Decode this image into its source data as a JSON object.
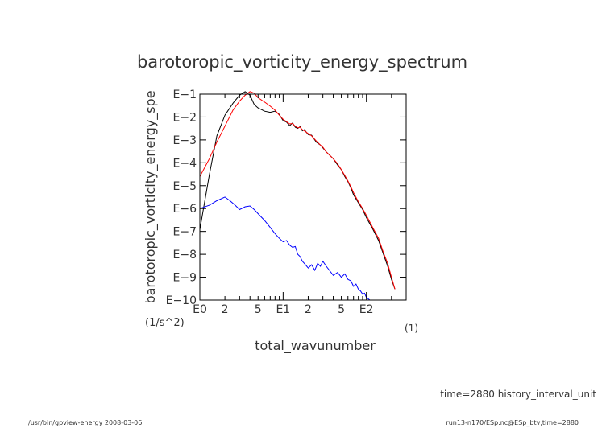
{
  "chart_data": {
    "type": "line",
    "title": "barotoropic_vorticity_energy_spectrum",
    "xlabel": "total_wavunumber",
    "xunit": "(1)",
    "ylabel": "barotoropic_vorticity_energy_spe",
    "yunit": "(1/s^2)",
    "x_scale": "log",
    "y_scale": "log",
    "xlim": [
      1,
      300
    ],
    "ylim": [
      1e-10,
      0.1
    ],
    "x_ticks": [
      {
        "value": 1,
        "label": "E0"
      },
      {
        "value": 2,
        "label": "2"
      },
      {
        "value": 5,
        "label": "5"
      },
      {
        "value": 10,
        "label": "E1"
      },
      {
        "value": 20,
        "label": "2"
      },
      {
        "value": 50,
        "label": "5"
      },
      {
        "value": 100,
        "label": "E2"
      }
    ],
    "y_ticks": [
      {
        "value": 0.1,
        "label": "E−1"
      },
      {
        "value": 0.01,
        "label": "E−2"
      },
      {
        "value": 0.001,
        "label": "E−3"
      },
      {
        "value": 0.0001,
        "label": "E−4"
      },
      {
        "value": 1e-05,
        "label": "E−5"
      },
      {
        "value": 1e-06,
        "label": "E−6"
      },
      {
        "value": 1e-07,
        "label": "E−7"
      },
      {
        "value": 1e-08,
        "label": "E−8"
      },
      {
        "value": 1e-09,
        "label": "E−9"
      },
      {
        "value": 1e-10,
        "label": "E−10"
      }
    ],
    "grid": false,
    "series": [
      {
        "color": "#000000",
        "points": [
          [
            1,
            1.2e-07
          ],
          [
            1.3,
            3e-05
          ],
          [
            1.6,
            0.0015
          ],
          [
            2,
            0.012
          ],
          [
            2.5,
            0.04
          ],
          [
            3,
            0.09
          ],
          [
            3.5,
            0.13
          ],
          [
            4,
            0.09
          ],
          [
            4.5,
            0.035
          ],
          [
            5,
            0.025
          ],
          [
            6,
            0.018
          ],
          [
            7,
            0.016
          ],
          [
            8,
            0.018
          ],
          [
            9,
            0.013
          ],
          [
            10,
            0.007
          ],
          [
            11,
            0.006
          ],
          [
            12,
            0.0042
          ],
          [
            13,
            0.0055
          ],
          [
            14,
            0.0036
          ],
          [
            15,
            0.0032
          ],
          [
            16,
            0.0038
          ],
          [
            17,
            0.0025
          ],
          [
            18,
            0.0028
          ],
          [
            20,
            0.0017
          ],
          [
            22,
            0.0016
          ],
          [
            25,
            0.0008
          ],
          [
            28,
            0.0006
          ],
          [
            30,
            0.00045
          ],
          [
            33,
            0.0003
          ],
          [
            36,
            0.00022
          ],
          [
            40,
            0.00015
          ],
          [
            45,
            8e-05
          ],
          [
            50,
            5e-05
          ],
          [
            55,
            2.5e-05
          ],
          [
            60,
            1.5e-05
          ],
          [
            65,
            8e-06
          ],
          [
            70,
            4e-06
          ],
          [
            80,
            1.8e-06
          ],
          [
            90,
            9e-07
          ],
          [
            100,
            4e-07
          ],
          [
            120,
            1.2e-07
          ],
          [
            140,
            4e-08
          ],
          [
            160,
            1e-08
          ],
          [
            180,
            3e-09
          ],
          [
            200,
            8e-10
          ],
          [
            220,
            3e-10
          ]
        ]
      },
      {
        "color": "#ff0000",
        "points": [
          [
            1,
            2.5e-05
          ],
          [
            1.3,
            0.00015
          ],
          [
            1.6,
            0.0008
          ],
          [
            2,
            0.004
          ],
          [
            2.5,
            0.02
          ],
          [
            3,
            0.05
          ],
          [
            3.5,
            0.09
          ],
          [
            4,
            0.13
          ],
          [
            4.5,
            0.11
          ],
          [
            5,
            0.07
          ],
          [
            6,
            0.045
          ],
          [
            7,
            0.03
          ],
          [
            8,
            0.02
          ],
          [
            9,
            0.012
          ],
          [
            10,
            0.008
          ],
          [
            11,
            0.0062
          ],
          [
            12,
            0.005
          ],
          [
            13,
            0.0052
          ],
          [
            14,
            0.004
          ],
          [
            15,
            0.0034
          ],
          [
            16,
            0.0036
          ],
          [
            17,
            0.0028
          ],
          [
            18,
            0.0025
          ],
          [
            20,
            0.0019
          ],
          [
            22,
            0.0015
          ],
          [
            25,
            0.0009
          ],
          [
            28,
            0.0006
          ],
          [
            30,
            0.00048
          ],
          [
            33,
            0.0003
          ],
          [
            36,
            0.00022
          ],
          [
            40,
            0.00015
          ],
          [
            45,
            9e-05
          ],
          [
            50,
            5e-05
          ],
          [
            55,
            2.8e-05
          ],
          [
            60,
            1.6e-05
          ],
          [
            65,
            9e-06
          ],
          [
            70,
            5e-06
          ],
          [
            80,
            2e-06
          ],
          [
            90,
            1e-06
          ],
          [
            100,
            5e-07
          ],
          [
            120,
            1.4e-07
          ],
          [
            140,
            5e-08
          ],
          [
            160,
            1.2e-08
          ],
          [
            180,
            4e-09
          ],
          [
            200,
            1e-09
          ],
          [
            220,
            3e-10
          ]
        ]
      },
      {
        "color": "#0000ff",
        "points": [
          [
            1,
            1e-06
          ],
          [
            1.3,
            1.4e-06
          ],
          [
            1.6,
            2.2e-06
          ],
          [
            2,
            3.2e-06
          ],
          [
            2.3,
            2.2e-06
          ],
          [
            2.6,
            1.5e-06
          ],
          [
            3,
            9e-07
          ],
          [
            3.5,
            1.2e-06
          ],
          [
            4,
            1.3e-06
          ],
          [
            4.5,
            9e-07
          ],
          [
            5,
            6e-07
          ],
          [
            6,
            3e-07
          ],
          [
            7,
            1.5e-07
          ],
          [
            8,
            8e-08
          ],
          [
            9,
            5e-08
          ],
          [
            10,
            3.5e-08
          ],
          [
            11,
            4e-08
          ],
          [
            12,
            2.5e-08
          ],
          [
            13,
            2e-08
          ],
          [
            14,
            2.2e-08
          ],
          [
            15,
            1e-08
          ],
          [
            16,
            8e-09
          ],
          [
            17,
            5e-09
          ],
          [
            18,
            4e-09
          ],
          [
            20,
            2.5e-09
          ],
          [
            22,
            3.5e-09
          ],
          [
            24,
            2e-09
          ],
          [
            26,
            4e-09
          ],
          [
            28,
            3e-09
          ],
          [
            30,
            5e-09
          ],
          [
            33,
            3e-09
          ],
          [
            36,
            2e-09
          ],
          [
            40,
            1.2e-09
          ],
          [
            45,
            1.6e-09
          ],
          [
            50,
            1e-09
          ],
          [
            55,
            1.4e-09
          ],
          [
            60,
            8e-10
          ],
          [
            65,
            7e-10
          ],
          [
            70,
            4e-10
          ],
          [
            75,
            5e-10
          ],
          [
            80,
            3e-10
          ],
          [
            85,
            2.5e-10
          ],
          [
            90,
            1.8e-10
          ],
          [
            95,
            2e-10
          ],
          [
            100,
            1.3e-10
          ],
          [
            110,
            1e-10
          ]
        ]
      }
    ]
  },
  "footer": {
    "time_label": "time=2880 history_interval_unit",
    "program": "/usr/bin/gpview-energy  2008-03-06",
    "source": "run13-n170/ESp.nc@ESp_btv,time=2880"
  }
}
